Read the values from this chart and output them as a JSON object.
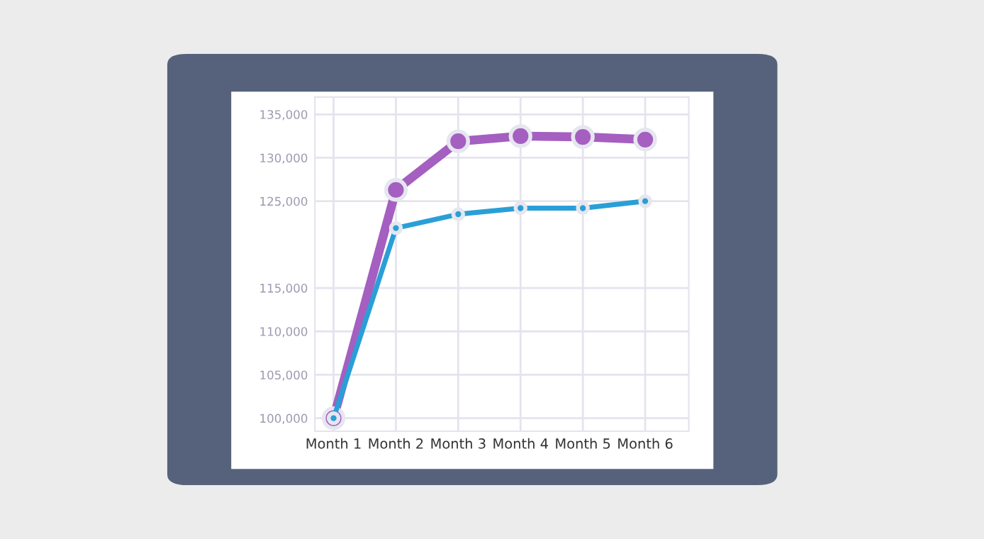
{
  "chart_data": {
    "type": "line",
    "categories": [
      "Month 1",
      "Month 2",
      "Month 3",
      "Month 4",
      "Month 5",
      "Month 6"
    ],
    "series": [
      {
        "color": "#a45fc0",
        "values": [
          100000,
          126300,
          131900,
          132500,
          132400,
          132100
        ]
      },
      {
        "color": "#2a9fd6",
        "values": [
          100000,
          121900,
          123500,
          124200,
          124200,
          125000
        ]
      }
    ],
    "ylim": [
      98500,
      137000
    ],
    "yticks": [
      {
        "value": 100000,
        "label": "100,000"
      },
      {
        "value": 105000,
        "label": "105,000"
      },
      {
        "value": 110000,
        "label": "110,000"
      },
      {
        "value": 115000,
        "label": "115,000"
      },
      {
        "value": 125000,
        "label": "125,000"
      },
      {
        "value": 130000,
        "label": "130,000"
      },
      {
        "value": 135000,
        "label": "135,000"
      }
    ],
    "grid": true,
    "marker": "circle",
    "line_style": "solid"
  }
}
